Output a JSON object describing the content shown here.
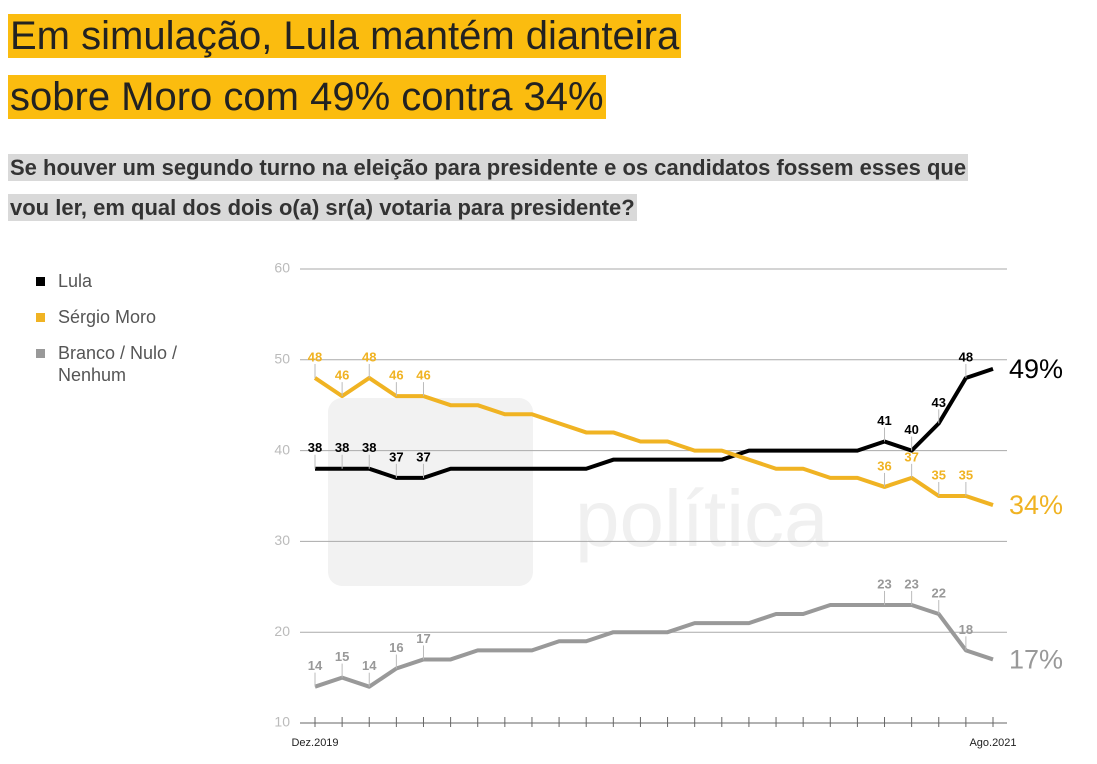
{
  "title": "Em simulação, Lula mantém dianteira sobre Moro com 49% contra 34%",
  "subtitle": "Se houver um segundo turno na eleição para presidente e os candidatos fossem esses que vou ler, em qual dos dois o(a) sr(a) votaria para presidente?",
  "chart_data": {
    "type": "line",
    "watermark": "política",
    "categories": [
      "Dez.2019",
      null,
      null,
      null,
      null,
      null,
      null,
      null,
      null,
      null,
      null,
      null,
      null,
      null,
      null,
      null,
      null,
      null,
      null,
      null,
      null,
      null,
      null,
      null,
      null,
      "Ago.2021"
    ],
    "ylim": [
      10,
      60
    ],
    "yticks": [
      10,
      20,
      30,
      40,
      50,
      60
    ],
    "grid": true,
    "series": [
      {
        "name": "Lula",
        "color": "#000000",
        "values": [
          38,
          38,
          38,
          37,
          37,
          38,
          38,
          38,
          38,
          38,
          38,
          39,
          39,
          39,
          39,
          39,
          40,
          40,
          40,
          40,
          40,
          41,
          40,
          43,
          48,
          49
        ],
        "value_labels": [
          "38",
          "38",
          "38",
          "37",
          "37",
          null,
          null,
          null,
          null,
          null,
          null,
          null,
          null,
          null,
          null,
          null,
          null,
          null,
          null,
          null,
          null,
          "41",
          "40",
          "43",
          "48",
          "49%"
        ]
      },
      {
        "name": "Sérgio Moro",
        "color": "#f0b323",
        "values": [
          48,
          46,
          48,
          46,
          46,
          45,
          45,
          44,
          44,
          43,
          42,
          42,
          41,
          41,
          40,
          40,
          39,
          38,
          38,
          37,
          37,
          36,
          37,
          35,
          35,
          34
        ],
        "value_labels": [
          "48",
          "46",
          "48",
          "46",
          "46",
          null,
          null,
          null,
          null,
          null,
          null,
          null,
          null,
          null,
          null,
          null,
          null,
          null,
          null,
          null,
          null,
          "36",
          "37",
          "35",
          "35",
          "34%"
        ]
      },
      {
        "name": "Branco / Nulo / Nenhum",
        "color": "#999999",
        "values": [
          14,
          15,
          14,
          16,
          17,
          17,
          18,
          18,
          18,
          19,
          19,
          20,
          20,
          20,
          21,
          21,
          21,
          22,
          22,
          23,
          23,
          23,
          23,
          22,
          18,
          17
        ],
        "value_labels": [
          "14",
          "15",
          "14",
          "16",
          "17",
          null,
          null,
          null,
          null,
          null,
          null,
          null,
          null,
          null,
          null,
          null,
          null,
          null,
          null,
          null,
          null,
          "23",
          "23",
          "22",
          "18",
          "17%"
        ]
      }
    ]
  }
}
